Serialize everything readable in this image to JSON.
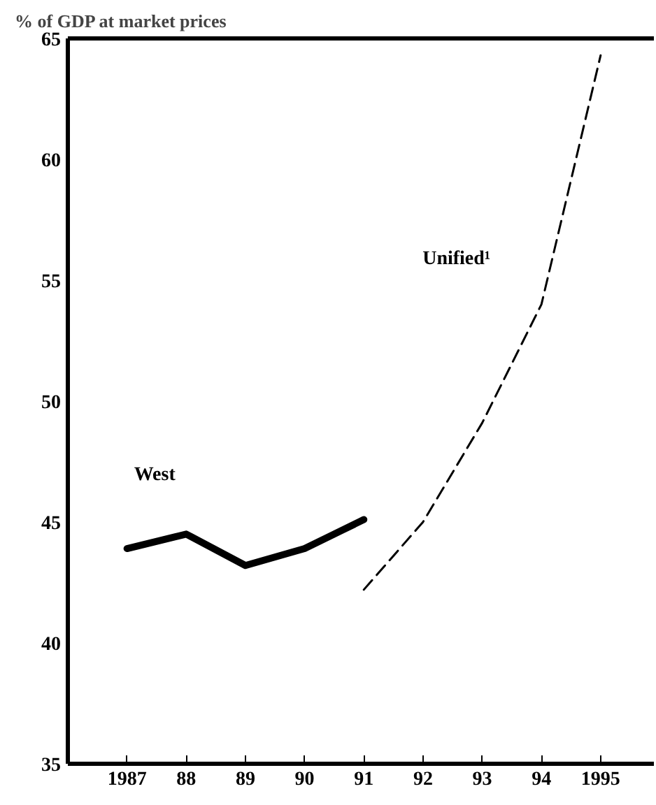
{
  "chart_data": {
    "type": "line",
    "ylabel": "% of GDP at market prices",
    "x": [
      1987,
      1988,
      1989,
      1990,
      1991,
      1992,
      1993,
      1994,
      1995
    ],
    "xlim": [
      1986,
      1995.9
    ],
    "xticks": [
      {
        "value": 1987,
        "label": "1987"
      },
      {
        "value": 1988,
        "label": "88"
      },
      {
        "value": 1989,
        "label": "89"
      },
      {
        "value": 1990,
        "label": "90"
      },
      {
        "value": 1991,
        "label": "91"
      },
      {
        "value": 1992,
        "label": "92"
      },
      {
        "value": 1993,
        "label": "93"
      },
      {
        "value": 1994,
        "label": "94"
      },
      {
        "value": 1995,
        "label": "1995"
      }
    ],
    "ylim": [
      35,
      65
    ],
    "yticks": [
      35,
      40,
      45,
      50,
      55,
      60,
      65
    ],
    "series": [
      {
        "name": "West",
        "color": "#000000",
        "line_style": "solid",
        "values": [
          43.9,
          44.5,
          43.2,
          43.9,
          45.1,
          null,
          null,
          null,
          null
        ]
      },
      {
        "name": "Unified¹",
        "color": "#000000",
        "line_style": "dashed",
        "values": [
          null,
          null,
          null,
          null,
          42.2,
          45.0,
          49.1,
          54.0,
          64.3
        ]
      }
    ],
    "grid": false
  }
}
